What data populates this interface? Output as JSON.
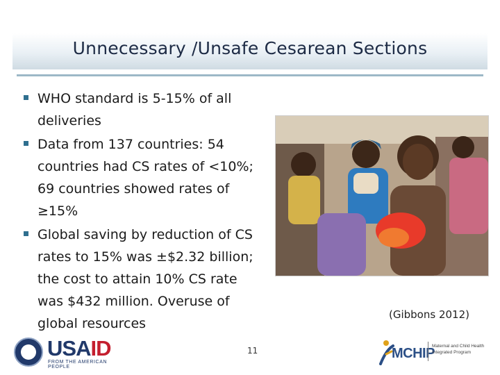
{
  "slide": {
    "title": "Unnecessary /Unsafe Cesarean Sections",
    "bullets": [
      "WHO standard is 5-15% of all deliveries",
      "Data from 137 countries: 54 countries had CS rates of <10%; 69 countries showed rates of ≥15%",
      "Global saving by reduction of CS rates to 15% was ±$2.32 billion; the cost to attain 10% CS rate was $432 million. Overuse of global resources"
    ],
    "photo_caption": "(Gibbons 2012)",
    "page_number": "11"
  },
  "logos": {
    "usaid_text_usa": "USA",
    "usaid_text_id": "ID",
    "usaid_tagline": "FROM THE AMERICAN PEOPLE",
    "mchip_wordmark": "MCHIP",
    "mchip_desc": "Maternal and Child Health Integrated Program"
  },
  "colors": {
    "title_text": "#1d2b45",
    "bullet_marker": "#2f6f8f",
    "usaid_blue": "#21396a",
    "usaid_red": "#c41e2e",
    "mchip_blue": "#2b4f86"
  }
}
